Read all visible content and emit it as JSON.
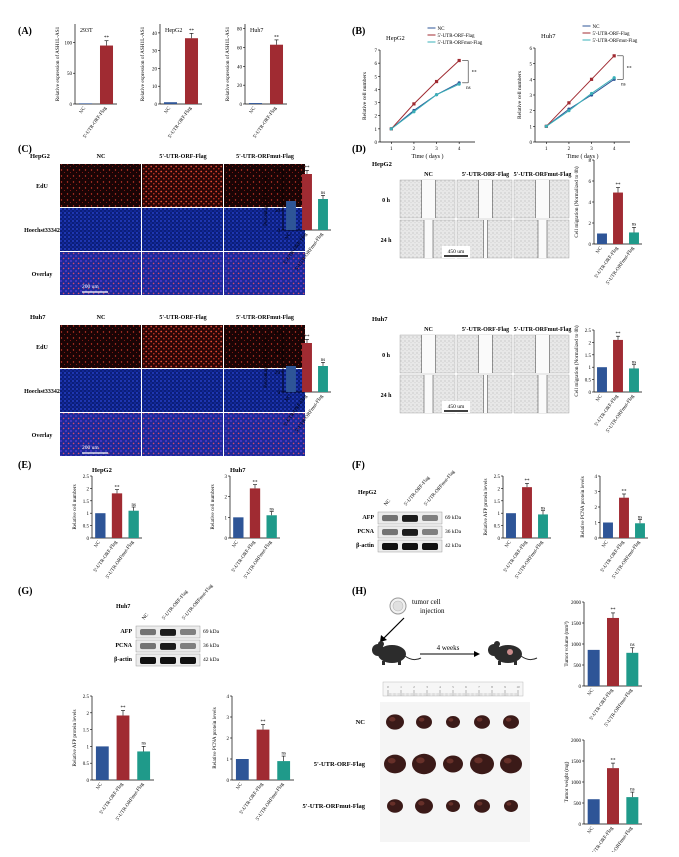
{
  "panel_letters": [
    "(A)",
    "(B)",
    "(C)",
    "(D)",
    "(E)",
    "(F)",
    "(G)",
    "(H)"
  ],
  "colors": {
    "nc": "#2e5597",
    "orf": "#a02b32",
    "mut": "#1f9a8a",
    "line_nc": "#2e5597",
    "line_orf": "#a02b32",
    "line_mut": "#3ab0b8"
  },
  "panel_A": {
    "ylabel": "Relative expression of ASH1L-AS1",
    "categories": [
      "NC",
      "5'-UTR-ORF-Flag"
    ],
    "sig": "**",
    "charts": [
      {
        "cell": "293T",
        "values": [
          1,
          95
        ],
        "ylim": [
          0,
          130
        ],
        "ticks": [
          0,
          50,
          100
        ]
      },
      {
        "cell": "HepG2",
        "values": [
          1,
          37
        ],
        "ylim": [
          0,
          45
        ],
        "ticks": [
          0,
          10,
          20,
          30,
          40
        ]
      },
      {
        "cell": "Huh7",
        "values": [
          1,
          63
        ],
        "ylim": [
          0,
          85
        ],
        "ticks": [
          0,
          20,
          40,
          60,
          80
        ]
      }
    ]
  },
  "panel_B": {
    "ylabel": "Relative cell numbers",
    "xlabel": "Time ( days )",
    "legend": [
      "NC",
      "5'-UTR-ORF-Flag",
      "5'-UTR-ORFmut-Flag"
    ],
    "x": [
      1,
      2,
      3,
      4
    ],
    "sig": [
      "**",
      "ns"
    ],
    "charts": [
      {
        "cell": "HepG2",
        "ylim": [
          0,
          7
        ],
        "ticks": [
          0,
          1,
          2,
          3,
          4,
          5,
          6,
          7
        ],
        "series": [
          [
            1,
            2.4,
            3.6,
            4.5
          ],
          [
            1,
            2.9,
            4.6,
            6.2
          ],
          [
            1,
            2.3,
            3.6,
            4.4
          ]
        ]
      },
      {
        "cell": "Huh7",
        "ylim": [
          0,
          6
        ],
        "ticks": [
          0,
          1,
          2,
          3,
          4,
          5,
          6
        ],
        "series": [
          [
            1,
            2.1,
            3.0,
            4.0
          ],
          [
            1,
            2.5,
            4.0,
            5.5
          ],
          [
            1,
            2.0,
            3.1,
            4.1
          ]
        ]
      }
    ]
  },
  "panel_C": {
    "groups": [
      "NC",
      "5'-UTR-ORF-Flag",
      "5'-UTR-ORFmut-Flag"
    ],
    "rows": [
      "EdU",
      "Hoechst33342",
      "Overlay"
    ],
    "scale": "200 um",
    "ylabel": "Percentage of EdU+cells",
    "sig": [
      "**",
      "ns"
    ],
    "cells": [
      {
        "cell": "HepG2",
        "values": [
          29,
          56,
          31
        ],
        "ylim": [
          0,
          60
        ],
        "ticks": [
          0,
          20,
          40,
          60
        ]
      },
      {
        "cell": "Huh7",
        "values": [
          26,
          49,
          26
        ],
        "ylim": [
          0,
          60
        ],
        "ticks": [
          0,
          20,
          40,
          60
        ]
      }
    ]
  },
  "panel_D": {
    "groups": [
      "NC",
      "5'-UTR-ORF-Flag",
      "5'-UTR-ORFmut-Flag"
    ],
    "rows": [
      "0 h",
      "24 h"
    ],
    "scale": "450 um",
    "ylabel": "Cell migration (Normalized to 0h)",
    "sig": [
      "**",
      "ns"
    ],
    "cells": [
      {
        "cell": "HepG2",
        "values": [
          1,
          4.9,
          1.1
        ],
        "ylim": [
          0,
          8
        ],
        "ticks": [
          0,
          2,
          4,
          6,
          8
        ]
      },
      {
        "cell": "Huh7",
        "values": [
          1,
          2.1,
          0.95
        ],
        "ylim": [
          0,
          2.5
        ],
        "ticks": [
          0.0,
          0.5,
          1.0,
          1.5,
          2.0,
          2.5
        ]
      }
    ]
  },
  "panel_E": {
    "ylabel": "Relative cell numbers",
    "sig": [
      "**",
      "ns"
    ],
    "charts": [
      {
        "cell": "HepG2",
        "values": [
          1,
          1.8,
          1.1
        ],
        "ylim": [
          0,
          2.5
        ],
        "ticks": [
          0.0,
          0.5,
          1.0,
          1.5,
          2.0,
          2.5
        ]
      },
      {
        "cell": "Huh7",
        "values": [
          1,
          2.4,
          1.1
        ],
        "ylim": [
          0,
          3
        ],
        "ticks": [
          0,
          1,
          2,
          3
        ]
      }
    ]
  },
  "panel_F": {
    "cell": "HepG2",
    "blot_rows": [
      "AFP",
      "PCNA",
      "β-actin"
    ],
    "kda": [
      "69 kDa",
      "36 kDa",
      "42 kDa"
    ],
    "sig": [
      "**",
      "ns"
    ],
    "charts": [
      {
        "ylabel": "Relative AFP protein levels",
        "values": [
          1,
          2.05,
          0.95
        ],
        "ylim": [
          0,
          2.5
        ],
        "ticks": [
          0.0,
          0.5,
          1.0,
          1.5,
          2.0,
          2.5
        ]
      },
      {
        "ylabel": "Relative PCNA protein levels",
        "values": [
          1,
          2.6,
          0.95
        ],
        "ylim": [
          0,
          4
        ],
        "ticks": [
          0,
          1,
          2,
          3,
          4
        ]
      }
    ]
  },
  "panel_G": {
    "cell": "Huh7",
    "blot_rows": [
      "AFP",
      "PCNA",
      "β-actin"
    ],
    "kda": [
      "69 kDa",
      "36 kDa",
      "42 kDa"
    ],
    "sig": [
      "**",
      "ns"
    ],
    "charts": [
      {
        "ylabel": "Relative AFP protein levels",
        "values": [
          1,
          1.92,
          0.85
        ],
        "ylim": [
          0,
          2.5
        ],
        "ticks": [
          0.0,
          0.5,
          1.0,
          1.5,
          2.0,
          2.5
        ]
      },
      {
        "ylabel": "Relative PCNA protein levels",
        "values": [
          1,
          2.4,
          0.9
        ],
        "ylim": [
          0,
          4
        ],
        "ticks": [
          0,
          1,
          2,
          3,
          4
        ]
      }
    ]
  },
  "panel_H": {
    "injection": "tumor cell injection",
    "weeks": "4 weeks",
    "ruler": [
      "0",
      "1",
      "2",
      "3",
      "4",
      "5",
      "6",
      "7",
      "8",
      "9",
      "10"
    ],
    "rows": [
      "NC",
      "5'-UTR-ORF-Flag",
      "5'-UTR-ORFmut-Flag"
    ],
    "sig": [
      "**",
      "ns"
    ],
    "charts": [
      {
        "ylabel": "Tumor volume (mm³)",
        "values": [
          860,
          1620,
          790
        ],
        "ylim": [
          0,
          2000
        ],
        "ticks": [
          0,
          500,
          1000,
          1500,
          2000
        ]
      },
      {
        "ylabel": "Tumor weight (mg)",
        "values": [
          590,
          1330,
          640
        ],
        "ylim": [
          0,
          2000
        ],
        "ticks": [
          0,
          500,
          1000,
          1500,
          2000
        ]
      }
    ]
  },
  "short_groups": [
    "NC",
    "5'-UTR-ORF-Flag",
    "5'-UTR-ORFmut-Flag"
  ],
  "chart_data": [
    {
      "type": "bar",
      "title": "293T",
      "categories": [
        "NC",
        "5'-UTR-ORF-Flag"
      ],
      "values": [
        1,
        95
      ],
      "ylabel": "Relative expression of ASH1L-AS1"
    },
    {
      "type": "bar",
      "title": "HepG2",
      "categories": [
        "NC",
        "5'-UTR-ORF-Flag"
      ],
      "values": [
        1,
        37
      ],
      "ylabel": "Relative expression of ASH1L-AS1"
    },
    {
      "type": "bar",
      "title": "Huh7",
      "categories": [
        "NC",
        "5'-UTR-ORF-Flag"
      ],
      "values": [
        1,
        63
      ],
      "ylabel": "Relative expression of ASH1L-AS1"
    },
    {
      "type": "line",
      "title": "HepG2",
      "x": [
        1,
        2,
        3,
        4
      ],
      "series": [
        {
          "name": "NC",
          "values": [
            1,
            2.4,
            3.6,
            4.5
          ]
        },
        {
          "name": "5'-UTR-ORF-Flag",
          "values": [
            1,
            2.9,
            4.6,
            6.2
          ]
        },
        {
          "name": "5'-UTR-ORFmut-Flag",
          "values": [
            1,
            2.3,
            3.6,
            4.4
          ]
        }
      ],
      "xlabel": "Time ( days )",
      "ylabel": "Relative cell numbers"
    },
    {
      "type": "line",
      "title": "Huh7",
      "x": [
        1,
        2,
        3,
        4
      ],
      "series": [
        {
          "name": "NC",
          "values": [
            1,
            2.1,
            3.0,
            4.0
          ]
        },
        {
          "name": "5'-UTR-ORF-Flag",
          "values": [
            1,
            2.5,
            4.0,
            5.5
          ]
        },
        {
          "name": "5'-UTR-ORFmut-Flag",
          "values": [
            1,
            2.0,
            3.1,
            4.1
          ]
        }
      ],
      "xlabel": "Time ( days )",
      "ylabel": "Relative cell numbers"
    }
  ]
}
